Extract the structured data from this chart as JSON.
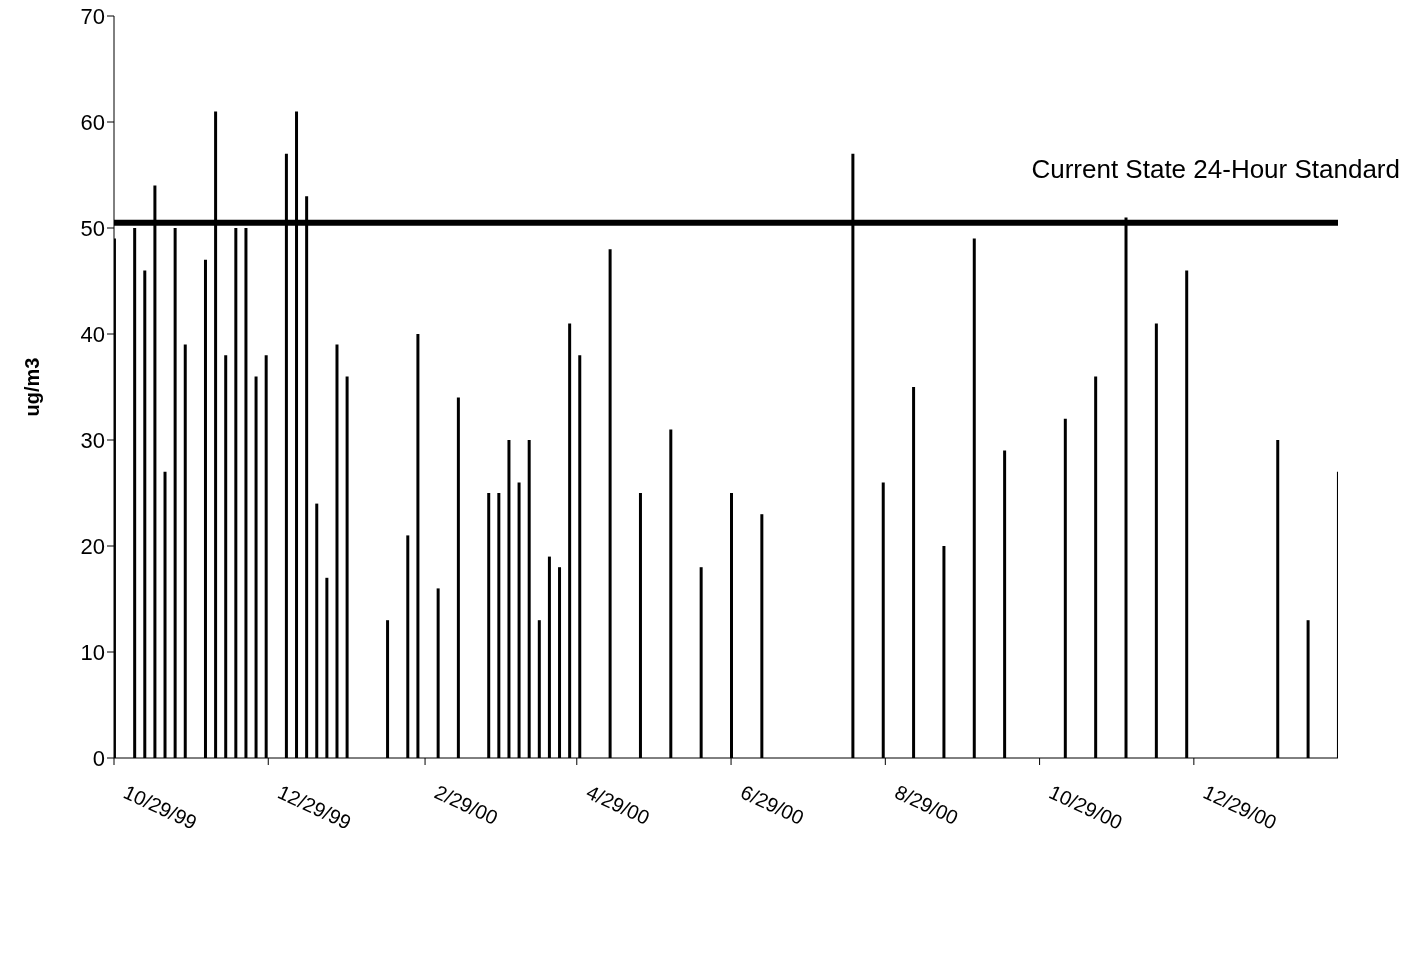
{
  "chart_data": {
    "type": "bar",
    "ylabel": "ug/m3",
    "x": [
      "1999-10-29",
      "1999-11-06",
      "1999-11-10",
      "1999-11-14",
      "1999-11-18",
      "1999-11-22",
      "1999-11-26",
      "1999-12-04",
      "1999-12-08",
      "1999-12-12",
      "1999-12-16",
      "1999-12-20",
      "1999-12-24",
      "1999-12-28",
      "2000-01-05",
      "2000-01-09",
      "2000-01-13",
      "2000-01-17",
      "2000-01-21",
      "2000-01-25",
      "2000-01-29",
      "2000-02-14",
      "2000-02-22",
      "2000-02-26",
      "2000-03-05",
      "2000-03-13",
      "2000-03-25",
      "2000-03-29",
      "2000-04-02",
      "2000-04-06",
      "2000-04-10",
      "2000-04-14",
      "2000-04-18",
      "2000-04-22",
      "2000-04-26",
      "2000-04-30",
      "2000-05-12",
      "2000-05-24",
      "2000-06-05",
      "2000-06-17",
      "2000-06-29",
      "2000-07-11",
      "2000-08-16",
      "2000-08-28",
      "2000-09-09",
      "2000-09-21",
      "2000-10-03",
      "2000-10-15",
      "2000-11-08",
      "2000-11-20",
      "2000-12-02",
      "2000-12-14",
      "2000-12-26",
      "2001-01-31",
      "2001-02-12",
      "2001-02-24"
    ],
    "values": [
      49,
      50,
      46,
      54,
      27,
      50,
      39,
      47,
      61,
      38,
      50,
      50,
      36,
      38,
      57,
      61,
      53,
      24,
      17,
      39,
      36,
      13,
      21,
      40,
      16,
      34,
      25,
      25,
      30,
      26,
      30,
      13,
      19,
      18,
      41,
      38,
      48,
      25,
      31,
      18,
      25,
      23,
      57,
      26,
      35,
      20,
      49,
      29,
      32,
      36,
      51,
      41,
      46,
      30,
      13,
      27
    ],
    "color": "#000000",
    "xlim": [
      "1999-10-29",
      "2001-02-24"
    ],
    "xticks": [
      {
        "value": "1999-10-29",
        "label": "10/29/99"
      },
      {
        "value": "1999-12-29",
        "label": "12/29/99"
      },
      {
        "value": "2000-02-29",
        "label": "2/29/00"
      },
      {
        "value": "2000-04-29",
        "label": "4/29/00"
      },
      {
        "value": "2000-06-29",
        "label": "6/29/00"
      },
      {
        "value": "2000-08-29",
        "label": "8/29/00"
      },
      {
        "value": "2000-10-29",
        "label": "10/29/00"
      },
      {
        "value": "2000-12-29",
        "label": "12/29/00"
      }
    ],
    "ylim": [
      0,
      70
    ],
    "yticks": [
      0,
      10,
      20,
      30,
      40,
      50,
      60,
      70
    ],
    "grid": false,
    "legend": false,
    "ref_lines": [
      {
        "axis": "y",
        "value": 50.5,
        "label": "Current State 24-Hour Standard",
        "color": "#000000"
      }
    ]
  }
}
